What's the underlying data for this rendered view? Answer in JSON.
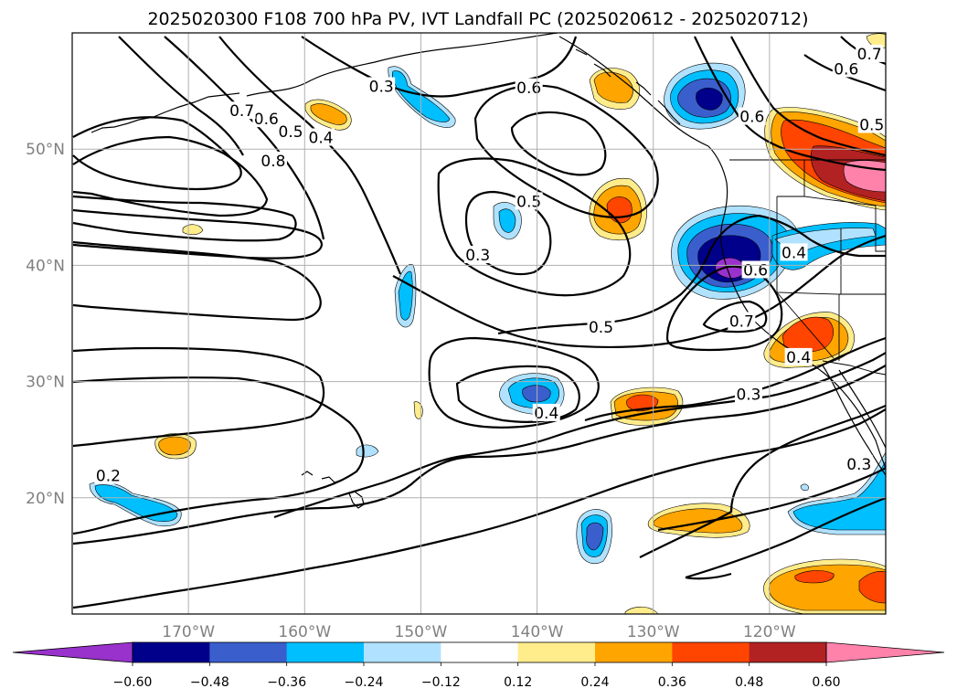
{
  "title": "2025020300 F108 700 hPa PV, IVT Landfall PC (2025020612 - 2025020712)",
  "map": {
    "lon_range": [
      -180,
      -110
    ],
    "lat_range": [
      10,
      60
    ],
    "lon_ticks": [
      {
        "lon": -170,
        "label": "170°W"
      },
      {
        "lon": -160,
        "label": "160°W"
      },
      {
        "lon": -150,
        "label": "150°W"
      },
      {
        "lon": -140,
        "label": "140°W"
      },
      {
        "lon": -130,
        "label": "130°W"
      },
      {
        "lon": -120,
        "label": "120°W"
      }
    ],
    "lat_ticks": [
      {
        "lat": 20,
        "label": "20°N"
      },
      {
        "lat": 30,
        "label": "30°N"
      },
      {
        "lat": 40,
        "label": "40°N"
      },
      {
        "lat": 50,
        "label": "50°N"
      }
    ],
    "grid": true
  },
  "colorbar": {
    "colors": [
      "#9932cc",
      "#00008b",
      "#3a5fcd",
      "#00bfff",
      "#b0e2ff",
      "#ffffff",
      "#ffec8b",
      "#ffa500",
      "#ff4500",
      "#b22222",
      "#ff82ab"
    ],
    "tick_labels": [
      "−0.60",
      "−0.48",
      "−0.36",
      "−0.24",
      "−0.12",
      "0.12",
      "0.24",
      "0.36",
      "0.48",
      "0.60"
    ],
    "extend": "both"
  },
  "contour_labels": [
    {
      "text": "0.2",
      "lon": -176.9,
      "lat": 21.9
    },
    {
      "text": "0.3",
      "lon": -153.4,
      "lat": 55.4
    },
    {
      "text": "0.3",
      "lon": -145.1,
      "lat": 40.9
    },
    {
      "text": "0.3",
      "lon": -121.8,
      "lat": 28.9
    },
    {
      "text": "0.3",
      "lon": -112.3,
      "lat": 22.9
    },
    {
      "text": "0.4",
      "lon": -158.6,
      "lat": 51.0
    },
    {
      "text": "0.4",
      "lon": -139.2,
      "lat": 27.3
    },
    {
      "text": "0.4",
      "lon": -117.5,
      "lat": 32.1
    },
    {
      "text": "0.4",
      "lon": -117.9,
      "lat": 41.1
    },
    {
      "text": "0.5",
      "lon": -161.2,
      "lat": 51.5
    },
    {
      "text": "0.5",
      "lon": -140.7,
      "lat": 45.5
    },
    {
      "text": "0.5",
      "lon": -134.5,
      "lat": 34.7
    },
    {
      "text": "0.5",
      "lon": -111.2,
      "lat": 52.1
    },
    {
      "text": "0.6",
      "lon": -163.3,
      "lat": 52.6
    },
    {
      "text": "0.6",
      "lon": -140.7,
      "lat": 55.3
    },
    {
      "text": "0.6",
      "lon": -121.2,
      "lat": 39.6
    },
    {
      "text": "0.6",
      "lon": -121.5,
      "lat": 52.8
    },
    {
      "text": "0.6",
      "lon": -113.4,
      "lat": 56.9
    },
    {
      "text": "0.7",
      "lon": -165.4,
      "lat": 53.3
    },
    {
      "text": "0.7",
      "lon": -122.4,
      "lat": 35.2
    },
    {
      "text": "0.7",
      "lon": -111.4,
      "lat": 58.2
    },
    {
      "text": "0.8",
      "lon": -162.7,
      "lat": 49.0
    }
  ]
}
